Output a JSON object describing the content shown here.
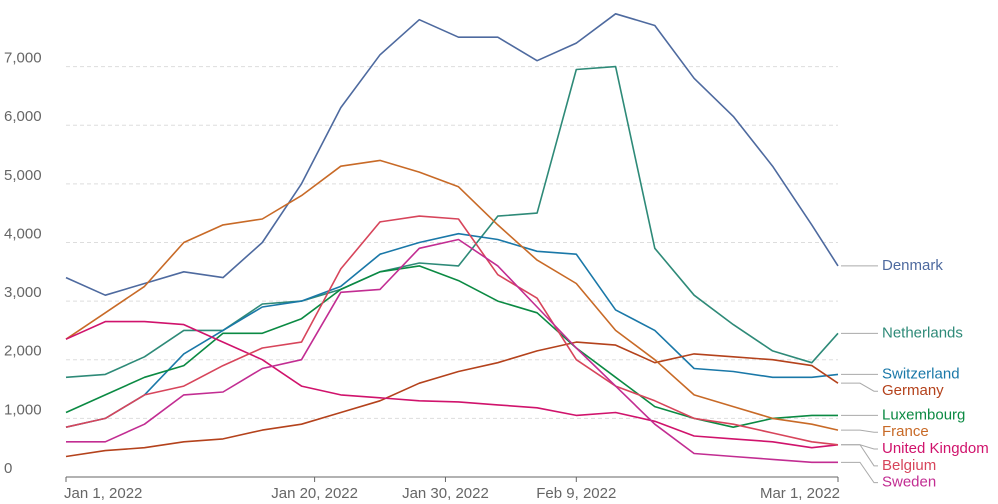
{
  "chart_data": {
    "type": "line",
    "x": [
      "2022-01-01",
      "2022-01-04",
      "2022-01-07",
      "2022-01-10",
      "2022-01-13",
      "2022-01-16",
      "2022-01-19",
      "2022-01-22",
      "2022-01-25",
      "2022-01-28",
      "2022-01-31",
      "2022-02-03",
      "2022-02-06",
      "2022-02-09",
      "2022-02-12",
      "2022-02-15",
      "2022-02-18",
      "2022-02-21",
      "2022-02-24",
      "2022-02-27",
      "2022-03-01"
    ],
    "xlim": [
      "2022-01-01",
      "2022-03-01"
    ],
    "xticks": [
      {
        "value": "2022-01-01",
        "label": "Jan 1, 2022"
      },
      {
        "value": "2022-01-20",
        "label": "Jan 20, 2022"
      },
      {
        "value": "2022-01-30",
        "label": "Jan 30, 2022"
      },
      {
        "value": "2022-02-09",
        "label": "Feb 9, 2022"
      },
      {
        "value": "2022-03-01",
        "label": "Mar 1, 2022"
      }
    ],
    "ylim": [
      0,
      8050
    ],
    "yticks": [
      0,
      {
        "value": 1000,
        "label": "1,000"
      },
      {
        "value": 2000,
        "label": "2,000"
      },
      {
        "value": 3000,
        "label": "3,000"
      },
      {
        "value": 4000,
        "label": "4,000"
      },
      {
        "value": 5000,
        "label": "5,000"
      },
      {
        "value": 6000,
        "label": "6,000"
      },
      {
        "value": 7000,
        "label": "7,000"
      }
    ],
    "grid": true,
    "series": [
      {
        "name": "Denmark",
        "color": "#4e6a9f",
        "values": [
          3400,
          3100,
          3300,
          3500,
          3400,
          4000,
          5000,
          6300,
          7200,
          7800,
          7500,
          7500,
          7100,
          7400,
          7900,
          7700,
          6800,
          6150,
          5300,
          4300,
          3600
        ]
      },
      {
        "name": "Netherlands",
        "color": "#2e8a78",
        "values": [
          1700,
          1750,
          2050,
          2500,
          2500,
          2950,
          3000,
          3200,
          3500,
          3650,
          3600,
          4450,
          4500,
          6950,
          7000,
          3900,
          3100,
          2600,
          2150,
          1950,
          2450
        ]
      },
      {
        "name": "Switzerland",
        "color": "#1a78a8",
        "values": [
          850,
          1000,
          1400,
          2100,
          2500,
          2900,
          3000,
          3250,
          3800,
          4000,
          4150,
          4050,
          3850,
          3800,
          2850,
          2500,
          1850,
          1800,
          1700,
          1700,
          1750
        ]
      },
      {
        "name": "Germany",
        "color": "#b4421c",
        "values": [
          350,
          450,
          500,
          600,
          650,
          800,
          900,
          1100,
          1300,
          1600,
          1800,
          1950,
          2150,
          2300,
          2250,
          1950,
          2100,
          2050,
          2000,
          1900,
          1600
        ]
      },
      {
        "name": "Luxembourg",
        "color": "#0b8a43",
        "values": [
          1100,
          1400,
          1700,
          1900,
          2450,
          2450,
          2700,
          3200,
          3500,
          3600,
          3350,
          3000,
          2800,
          2200,
          1700,
          1200,
          1000,
          850,
          1000,
          1050,
          1050
        ]
      },
      {
        "name": "France",
        "color": "#c86a27",
        "values": [
          2350,
          2800,
          3250,
          4000,
          4300,
          4400,
          4800,
          5300,
          5400,
          5200,
          4950,
          4300,
          3700,
          3300,
          2500,
          2000,
          1400,
          1200,
          1000,
          900,
          800
        ]
      },
      {
        "name": "United Kingdom",
        "color": "#d0136c",
        "values": [
          2350,
          2650,
          2650,
          2600,
          2300,
          2000,
          1550,
          1400,
          1350,
          1300,
          1280,
          1230,
          1180,
          1050,
          1100,
          950,
          700,
          650,
          600,
          500,
          550
        ]
      },
      {
        "name": "Belgium",
        "color": "#d7455b",
        "values": [
          850,
          1000,
          1400,
          1550,
          1900,
          2200,
          2300,
          3550,
          4350,
          4450,
          4400,
          3450,
          3050,
          2000,
          1550,
          1300,
          1000,
          900,
          750,
          600,
          550
        ]
      },
      {
        "name": "Sweden",
        "color": "#c22d92",
        "values": [
          600,
          600,
          900,
          1400,
          1450,
          1850,
          2000,
          3150,
          3200,
          3900,
          4050,
          3600,
          2900,
          2200,
          1550,
          900,
          400,
          350,
          300,
          250,
          250
        ]
      }
    ]
  }
}
